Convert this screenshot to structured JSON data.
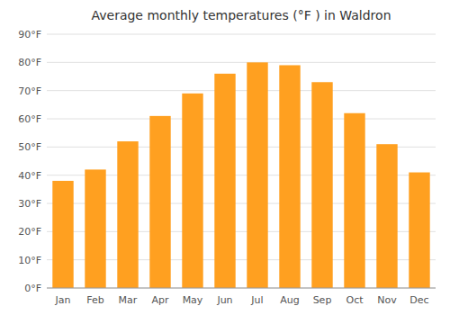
{
  "chart_data": {
    "type": "bar",
    "title": "Average monthly temperatures (°F ) in Waldron",
    "categories": [
      "Jan",
      "Feb",
      "Mar",
      "Apr",
      "May",
      "Jun",
      "Jul",
      "Aug",
      "Sep",
      "Oct",
      "Nov",
      "Dec"
    ],
    "values": [
      38,
      42,
      52,
      61,
      69,
      76,
      80,
      79,
      73,
      62,
      51,
      41
    ],
    "color": "#FFA020",
    "ylim": [
      0,
      90
    ],
    "yticks": [
      {
        "value": 0,
        "label": "0°F"
      },
      {
        "value": 10,
        "label": "10°F"
      },
      {
        "value": 20,
        "label": "20°F"
      },
      {
        "value": 30,
        "label": "30°F"
      },
      {
        "value": 40,
        "label": "40°F"
      },
      {
        "value": 50,
        "label": "50°F"
      },
      {
        "value": 60,
        "label": "60°F"
      },
      {
        "value": 70,
        "label": "70°F"
      },
      {
        "value": 80,
        "label": "80°F"
      },
      {
        "value": 90,
        "label": "90°F"
      }
    ],
    "grid": true
  }
}
